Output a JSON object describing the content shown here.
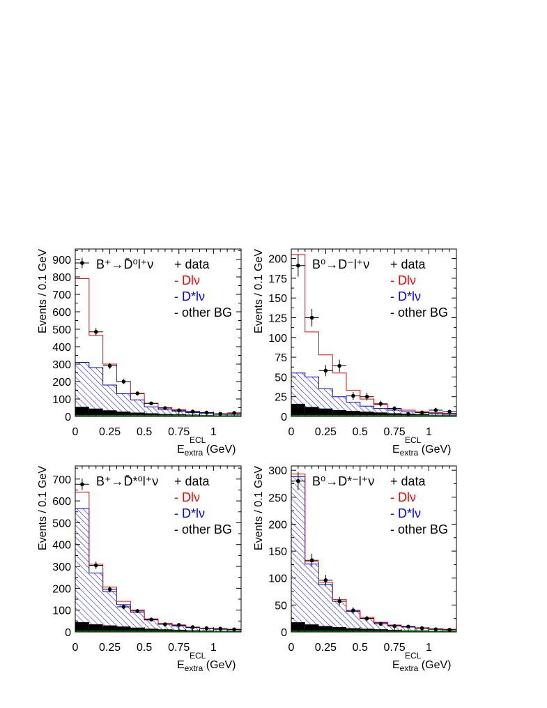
{
  "colors": {
    "data": "#000000",
    "dlnu": "#ff0000",
    "dstarlnu": "#0000ff",
    "other_bg": "#000000",
    "signal_base": "#00aa00"
  },
  "chart_data": [
    {
      "type": "bar",
      "title": "B⁺→D̄⁰l⁺ν",
      "xlabel": "E_extra^ECL (GeV)",
      "xlabel_main": "E",
      "xlabel_sub": "extra",
      "xlabel_sup": "ECL",
      "xlabel_unit": " (GeV)",
      "ylabel": "Events / 0.1 GeV",
      "xlim": [
        0,
        1.2
      ],
      "ylim": [
        0,
        960
      ],
      "xticks": [
        0,
        0.25,
        0.5,
        0.75,
        1
      ],
      "xtick_labels": [
        "0",
        "0.25",
        "0.5",
        "0.75",
        "1"
      ],
      "yticks": [
        0,
        100,
        200,
        300,
        400,
        500,
        600,
        700,
        800,
        900
      ],
      "ytick_labels": [
        "0",
        "100",
        "200",
        "300",
        "400",
        "500",
        "600",
        "700",
        "800",
        "900"
      ],
      "legend": [
        "+ data",
        "- Dlν",
        "- D*lν",
        "- other BG"
      ],
      "bin_edges": [
        0,
        0.1,
        0.2,
        0.3,
        0.4,
        0.5,
        0.6,
        0.7,
        0.8,
        0.9,
        1.0,
        1.1,
        1.2
      ],
      "series": [
        {
          "name": "Dlν",
          "values": [
            790,
            465,
            300,
            200,
            130,
            75,
            50,
            38,
            30,
            22,
            15,
            15
          ]
        },
        {
          "name": "D*lν",
          "values": [
            310,
            280,
            180,
            130,
            95,
            55,
            40,
            30,
            22,
            17,
            12,
            12
          ]
        },
        {
          "name": "other BG",
          "values": [
            55,
            45,
            35,
            28,
            22,
            18,
            14,
            12,
            10,
            8,
            6,
            5
          ]
        },
        {
          "name": "data",
          "x": [
            0.05,
            0.15,
            0.25,
            0.35,
            0.45,
            0.55,
            0.65,
            0.75,
            0.85,
            0.95,
            1.05,
            1.15
          ],
          "values": [
            880,
            485,
            290,
            200,
            132,
            75,
            48,
            35,
            28,
            22,
            15,
            20
          ],
          "errors": [
            30,
            22,
            17,
            14,
            11,
            9,
            7,
            6,
            5,
            5,
            4,
            5
          ]
        }
      ]
    },
    {
      "type": "bar",
      "title": "B⁰→D⁻l⁺ν",
      "xlabel": "E_extra^ECL (GeV)",
      "xlabel_main": "E",
      "xlabel_sub": "extra",
      "xlabel_sup": "ECL",
      "xlabel_unit": " (GeV)",
      "ylabel": "Events / 0.1 GeV",
      "xlim": [
        0,
        1.2
      ],
      "ylim": [
        0,
        212
      ],
      "xticks": [
        0,
        0.25,
        0.5,
        0.75,
        1
      ],
      "xtick_labels": [
        "0",
        "0.25",
        "0.5",
        "0.75",
        "1"
      ],
      "yticks": [
        0,
        25,
        50,
        75,
        100,
        125,
        150,
        175,
        200
      ],
      "ytick_labels": [
        "0",
        "25",
        "50",
        "75",
        "100",
        "125",
        "150",
        "175",
        "200"
      ],
      "legend": [
        "+ data",
        "- Dlν",
        "- D*lν",
        "- other BG"
      ],
      "bin_edges": [
        0,
        0.1,
        0.2,
        0.3,
        0.4,
        0.5,
        0.6,
        0.7,
        0.8,
        0.9,
        1.0,
        1.1,
        1.2
      ],
      "series": [
        {
          "name": "Dlν",
          "values": [
            205,
            107,
            78,
            55,
            33,
            22,
            15,
            10,
            8,
            6,
            5,
            4
          ]
        },
        {
          "name": "D*lν",
          "values": [
            55,
            50,
            35,
            25,
            18,
            13,
            10,
            8,
            6,
            5,
            4,
            3
          ]
        },
        {
          "name": "other BG",
          "values": [
            16,
            12,
            10,
            8,
            7,
            6,
            5,
            4,
            3,
            3,
            2,
            2
          ]
        },
        {
          "name": "data",
          "x": [
            0.05,
            0.15,
            0.25,
            0.35,
            0.45,
            0.55,
            0.65,
            0.75,
            0.85,
            0.95,
            1.05,
            1.15
          ],
          "values": [
            191,
            125,
            58,
            64,
            26,
            25,
            16,
            10,
            3,
            5,
            8,
            6
          ],
          "errors": [
            14,
            11,
            7,
            8,
            5,
            5,
            4,
            3,
            2,
            2,
            3,
            2
          ]
        }
      ]
    },
    {
      "type": "bar",
      "title": "B⁺→D̄*⁰l⁺ν",
      "xlabel": "E_extra^ECL (GeV)",
      "xlabel_main": "E",
      "xlabel_sub": "extra",
      "xlabel_sup": "ECL",
      "xlabel_unit": " (GeV)",
      "ylabel": "Events / 0.1 GeV",
      "xlim": [
        0,
        1.2
      ],
      "ylim": [
        0,
        760
      ],
      "xticks": [
        0,
        0.25,
        0.5,
        0.75,
        1
      ],
      "xtick_labels": [
        "0",
        "0.25",
        "0.5",
        "0.75",
        "1"
      ],
      "yticks": [
        0,
        100,
        200,
        300,
        400,
        500,
        600,
        700
      ],
      "ytick_labels": [
        "0",
        "100",
        "200",
        "300",
        "400",
        "500",
        "600",
        "700"
      ],
      "legend": [
        "+ data",
        "- Dlν",
        "- D*lν",
        "- other BG"
      ],
      "bin_edges": [
        0,
        0.1,
        0.2,
        0.3,
        0.4,
        0.5,
        0.6,
        0.7,
        0.8,
        0.9,
        1.0,
        1.1,
        1.2
      ],
      "series": [
        {
          "name": "Dlν",
          "values": [
            640,
            310,
            205,
            140,
            100,
            60,
            40,
            30,
            22,
            18,
            14,
            12
          ]
        },
        {
          "name": "D*lν",
          "values": [
            565,
            270,
            185,
            125,
            90,
            55,
            35,
            27,
            20,
            16,
            12,
            10
          ]
        },
        {
          "name": "other BG",
          "values": [
            45,
            35,
            30,
            25,
            20,
            15,
            12,
            10,
            8,
            7,
            5,
            4
          ]
        },
        {
          "name": "data",
          "x": [
            0.05,
            0.15,
            0.25,
            0.35,
            0.45,
            0.55,
            0.65,
            0.75,
            0.85,
            0.95,
            1.05,
            1.15
          ],
          "values": [
            676,
            305,
            195,
            115,
            96,
            57,
            35,
            32,
            22,
            17,
            15,
            12
          ],
          "errors": [
            26,
            17,
            14,
            11,
            10,
            8,
            6,
            6,
            5,
            4,
            4,
            4
          ]
        }
      ]
    },
    {
      "type": "bar",
      "title": "B⁰→D*⁻l⁺ν",
      "xlabel": "E_extra^ECL (GeV)",
      "xlabel_main": "E",
      "xlabel_sub": "extra",
      "xlabel_sup": "ECL",
      "xlabel_unit": " (GeV)",
      "ylabel": "Events / 0.1 GeV",
      "xlim": [
        0,
        1.2
      ],
      "ylim": [
        0,
        308
      ],
      "xticks": [
        0,
        0.25,
        0.5,
        0.75,
        1
      ],
      "xtick_labels": [
        "0",
        "0.25",
        "0.5",
        "0.75",
        "1"
      ],
      "yticks": [
        0,
        50,
        100,
        150,
        200,
        250,
        300
      ],
      "ytick_labels": [
        "0",
        "50",
        "100",
        "150",
        "200",
        "250",
        "300"
      ],
      "legend": [
        "+ data",
        "- Dlν",
        "- D*lν",
        "- other BG"
      ],
      "bin_edges": [
        0,
        0.1,
        0.2,
        0.3,
        0.4,
        0.5,
        0.6,
        0.7,
        0.8,
        0.9,
        1.0,
        1.1,
        1.2
      ],
      "series": [
        {
          "name": "Dlν",
          "values": [
            293,
            130,
            92,
            60,
            40,
            27,
            18,
            13,
            10,
            8,
            6,
            5
          ]
        },
        {
          "name": "D*lν",
          "values": [
            288,
            126,
            88,
            57,
            38,
            25,
            17,
            12,
            9,
            7,
            5,
            4
          ]
        },
        {
          "name": "other BG",
          "values": [
            18,
            14,
            11,
            9,
            7,
            6,
            5,
            4,
            3,
            3,
            2,
            2
          ]
        },
        {
          "name": "data",
          "x": [
            0.05,
            0.15,
            0.25,
            0.35,
            0.45,
            0.55,
            0.65,
            0.75,
            0.85,
            0.95,
            1.05,
            1.15
          ],
          "values": [
            280,
            133,
            96,
            57,
            40,
            25,
            15,
            11,
            10,
            7,
            5,
            4
          ],
          "errors": [
            17,
            12,
            10,
            8,
            6,
            5,
            4,
            3,
            3,
            3,
            2,
            2
          ]
        }
      ]
    }
  ]
}
